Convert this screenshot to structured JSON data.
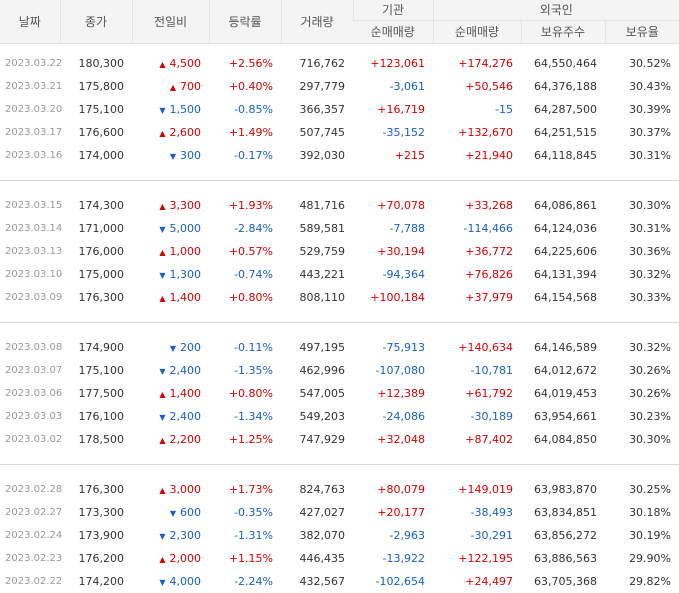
{
  "headers": {
    "date": "날짜",
    "close": "종가",
    "change": "전일비",
    "rate": "등락률",
    "volume": "거래량",
    "institution": "기관",
    "foreign": "외국인",
    "inst_net": "순매매량",
    "foreign_net": "순매매량",
    "shares_held": "보유주수",
    "holding_ratio": "보유율"
  },
  "colors": {
    "up": "#d60000",
    "down": "#1660c8"
  },
  "groups": [
    [
      {
        "date": "2023.03.22",
        "close": "180,300",
        "dir": "up",
        "change": "4,500",
        "rate": "+2.56%",
        "volume": "716,762",
        "inst": "+123,061",
        "foreign": "+174,276",
        "held": "64,550,464",
        "ratio": "30.52%"
      },
      {
        "date": "2023.03.21",
        "close": "175,800",
        "dir": "up",
        "change": "700",
        "rate": "+0.40%",
        "volume": "297,779",
        "inst": "-3,061",
        "foreign": "+50,546",
        "held": "64,376,188",
        "ratio": "30.43%"
      },
      {
        "date": "2023.03.20",
        "close": "175,100",
        "dir": "down",
        "change": "1,500",
        "rate": "-0.85%",
        "volume": "366,357",
        "inst": "+16,719",
        "foreign": "-15",
        "held": "64,287,500",
        "ratio": "30.39%"
      },
      {
        "date": "2023.03.17",
        "close": "176,600",
        "dir": "up",
        "change": "2,600",
        "rate": "+1.49%",
        "volume": "507,745",
        "inst": "-35,152",
        "foreign": "+132,670",
        "held": "64,251,515",
        "ratio": "30.37%"
      },
      {
        "date": "2023.03.16",
        "close": "174,000",
        "dir": "down",
        "change": "300",
        "rate": "-0.17%",
        "volume": "392,030",
        "inst": "+215",
        "foreign": "+21,940",
        "held": "64,118,845",
        "ratio": "30.31%"
      }
    ],
    [
      {
        "date": "2023.03.15",
        "close": "174,300",
        "dir": "up",
        "change": "3,300",
        "rate": "+1.93%",
        "volume": "481,716",
        "inst": "+70,078",
        "foreign": "+33,268",
        "held": "64,086,861",
        "ratio": "30.30%"
      },
      {
        "date": "2023.03.14",
        "close": "171,000",
        "dir": "down",
        "change": "5,000",
        "rate": "-2.84%",
        "volume": "589,581",
        "inst": "-7,788",
        "foreign": "-114,466",
        "held": "64,124,036",
        "ratio": "30.31%"
      },
      {
        "date": "2023.03.13",
        "close": "176,000",
        "dir": "up",
        "change": "1,000",
        "rate": "+0.57%",
        "volume": "529,759",
        "inst": "+30,194",
        "foreign": "+36,772",
        "held": "64,225,606",
        "ratio": "30.36%"
      },
      {
        "date": "2023.03.10",
        "close": "175,000",
        "dir": "down",
        "change": "1,300",
        "rate": "-0.74%",
        "volume": "443,221",
        "inst": "-94,364",
        "foreign": "+76,826",
        "held": "64,131,394",
        "ratio": "30.32%"
      },
      {
        "date": "2023.03.09",
        "close": "176,300",
        "dir": "up",
        "change": "1,400",
        "rate": "+0.80%",
        "volume": "808,110",
        "inst": "+100,184",
        "foreign": "+37,979",
        "held": "64,154,568",
        "ratio": "30.33%"
      }
    ],
    [
      {
        "date": "2023.03.08",
        "close": "174,900",
        "dir": "down",
        "change": "200",
        "rate": "-0.11%",
        "volume": "497,195",
        "inst": "-75,913",
        "foreign": "+140,634",
        "held": "64,146,589",
        "ratio": "30.32%"
      },
      {
        "date": "2023.03.07",
        "close": "175,100",
        "dir": "down",
        "change": "2,400",
        "rate": "-1.35%",
        "volume": "462,996",
        "inst": "-107,080",
        "foreign": "-10,781",
        "held": "64,012,672",
        "ratio": "30.26%"
      },
      {
        "date": "2023.03.06",
        "close": "177,500",
        "dir": "up",
        "change": "1,400",
        "rate": "+0.80%",
        "volume": "547,005",
        "inst": "+12,389",
        "foreign": "+61,792",
        "held": "64,019,453",
        "ratio": "30.26%"
      },
      {
        "date": "2023.03.03",
        "close": "176,100",
        "dir": "down",
        "change": "2,400",
        "rate": "-1.34%",
        "volume": "549,203",
        "inst": "-24,086",
        "foreign": "-30,189",
        "held": "63,954,661",
        "ratio": "30.23%"
      },
      {
        "date": "2023.03.02",
        "close": "178,500",
        "dir": "up",
        "change": "2,200",
        "rate": "+1.25%",
        "volume": "747,929",
        "inst": "+32,048",
        "foreign": "+87,402",
        "held": "64,084,850",
        "ratio": "30.30%"
      }
    ],
    [
      {
        "date": "2023.02.28",
        "close": "176,300",
        "dir": "up",
        "change": "3,000",
        "rate": "+1.73%",
        "volume": "824,763",
        "inst": "+80,079",
        "foreign": "+149,019",
        "held": "63,983,870",
        "ratio": "30.25%"
      },
      {
        "date": "2023.02.27",
        "close": "173,300",
        "dir": "down",
        "change": "600",
        "rate": "-0.35%",
        "volume": "427,027",
        "inst": "+20,177",
        "foreign": "-38,493",
        "held": "63,834,851",
        "ratio": "30.18%"
      },
      {
        "date": "2023.02.24",
        "close": "173,900",
        "dir": "down",
        "change": "2,300",
        "rate": "-1.31%",
        "volume": "382,070",
        "inst": "-2,963",
        "foreign": "-30,291",
        "held": "63,856,272",
        "ratio": "30.19%"
      },
      {
        "date": "2023.02.23",
        "close": "176,200",
        "dir": "up",
        "change": "2,000",
        "rate": "+1.15%",
        "volume": "446,435",
        "inst": "-13,922",
        "foreign": "+122,195",
        "held": "63,886,563",
        "ratio": "29.90%"
      },
      {
        "date": "2023.02.22",
        "close": "174,200",
        "dir": "down",
        "change": "4,000",
        "rate": "-2.24%",
        "volume": "432,567",
        "inst": "-102,654",
        "foreign": "+24,497",
        "held": "63,705,368",
        "ratio": "29.82%"
      }
    ]
  ]
}
